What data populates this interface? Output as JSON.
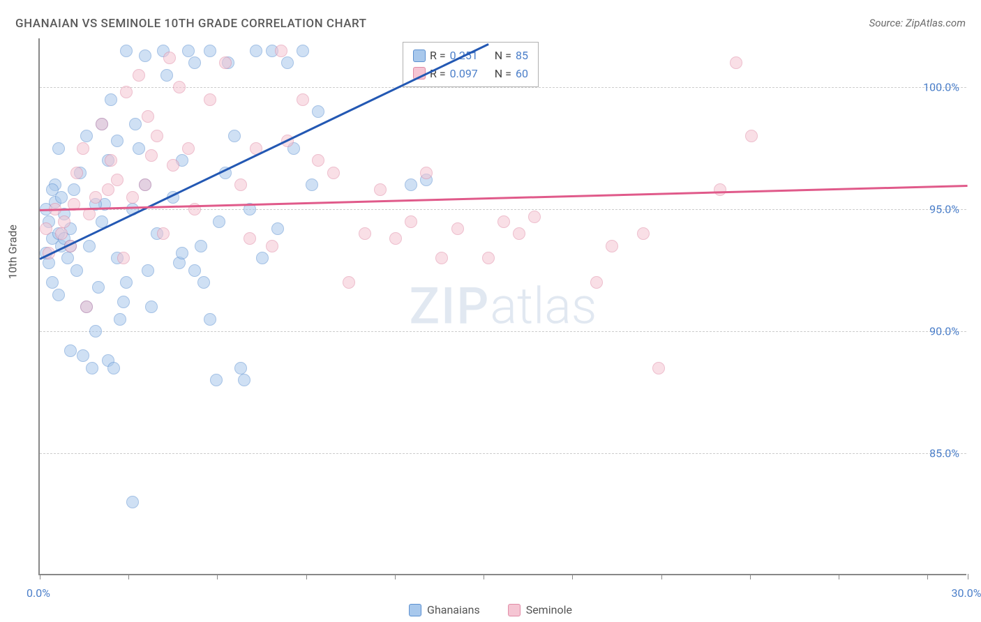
{
  "title": "GHANAIAN VS SEMINOLE 10TH GRADE CORRELATION CHART",
  "source": "Source: ZipAtlas.com",
  "watermark_zip": "ZIP",
  "watermark_atlas": "atlas",
  "y_axis_label": "10th Grade",
  "colors": {
    "blue_fill": "#a8c8ec",
    "blue_stroke": "#5a8fd0",
    "blue_line": "#2358b3",
    "pink_fill": "#f5c5d3",
    "pink_stroke": "#e08aa5",
    "pink_line": "#e05a8a",
    "text_blue": "#4a7ec9",
    "grid": "#cccccc",
    "axis": "#888888"
  },
  "chart": {
    "type": "scatter",
    "xlim": [
      0,
      30
    ],
    "ylim": [
      80,
      102
    ],
    "x_ticks": [
      0,
      2.87,
      5.74,
      8.61,
      11.48,
      14.35,
      17.22,
      20.09,
      22.96,
      25.83,
      28.7,
      30
    ],
    "x_tick_labels": {
      "0": "0.0%",
      "30": "30.0%"
    },
    "y_gridlines": [
      85,
      90,
      95,
      100
    ],
    "y_tick_labels": {
      "85": "85.0%",
      "90": "90.0%",
      "95": "95.0%",
      "100": "100.0%"
    },
    "series": [
      {
        "name": "Ghanaians",
        "color_fill": "#a8c8ec",
        "color_stroke": "#5a8fd0",
        "r_value": "0.251",
        "n_value": "85",
        "trend": {
          "x1": 0,
          "y1": 93.0,
          "x2": 14.5,
          "y2": 101.8,
          "color": "#2358b3"
        },
        "points": [
          [
            0.2,
            95.0
          ],
          [
            0.3,
            94.5
          ],
          [
            0.4,
            93.8
          ],
          [
            0.5,
            95.3
          ],
          [
            0.6,
            94.0
          ],
          [
            0.7,
            93.5
          ],
          [
            0.8,
            94.8
          ],
          [
            0.5,
            96.0
          ],
          [
            0.4,
            92.0
          ],
          [
            0.6,
            91.5
          ],
          [
            0.7,
            95.5
          ],
          [
            0.9,
            93.0
          ],
          [
            1.0,
            94.2
          ],
          [
            1.1,
            95.8
          ],
          [
            1.2,
            92.5
          ],
          [
            1.4,
            89.0
          ],
          [
            1.5,
            91.0
          ],
          [
            1.6,
            93.5
          ],
          [
            1.7,
            88.5
          ],
          [
            1.8,
            90.0
          ],
          [
            1.9,
            91.8
          ],
          [
            2.0,
            94.5
          ],
          [
            2.1,
            95.2
          ],
          [
            2.2,
            97.0
          ],
          [
            2.3,
            99.5
          ],
          [
            2.5,
            93.0
          ],
          [
            2.6,
            90.5
          ],
          [
            2.7,
            91.2
          ],
          [
            2.8,
            92.0
          ],
          [
            3.0,
            95.0
          ],
          [
            3.1,
            98.5
          ],
          [
            3.2,
            97.5
          ],
          [
            3.4,
            96.0
          ],
          [
            3.5,
            92.5
          ],
          [
            3.6,
            91.0
          ],
          [
            3.8,
            94.0
          ],
          [
            4.0,
            101.5
          ],
          [
            4.1,
            100.5
          ],
          [
            4.3,
            95.5
          ],
          [
            4.5,
            92.8
          ],
          [
            4.6,
            97.0
          ],
          [
            4.8,
            101.5
          ],
          [
            5.0,
            101.0
          ],
          [
            5.2,
            93.5
          ],
          [
            5.3,
            92.0
          ],
          [
            5.5,
            90.5
          ],
          [
            5.7,
            88.0
          ],
          [
            5.8,
            94.5
          ],
          [
            6.0,
            96.5
          ],
          [
            6.1,
            101.0
          ],
          [
            6.3,
            98.0
          ],
          [
            6.5,
            88.5
          ],
          [
            6.6,
            88.0
          ],
          [
            6.8,
            95.0
          ],
          [
            7.0,
            101.5
          ],
          [
            7.2,
            93.0
          ],
          [
            7.5,
            101.5
          ],
          [
            7.7,
            94.2
          ],
          [
            8.0,
            101.0
          ],
          [
            8.2,
            97.5
          ],
          [
            8.5,
            101.5
          ],
          [
            8.8,
            96.0
          ],
          [
            9.0,
            99.0
          ],
          [
            3.0,
            83.0
          ],
          [
            2.2,
            88.8
          ],
          [
            2.4,
            88.5
          ],
          [
            1.0,
            89.2
          ],
          [
            0.3,
            92.8
          ],
          [
            0.2,
            93.2
          ],
          [
            0.8,
            93.8
          ],
          [
            1.3,
            96.5
          ],
          [
            1.5,
            98.0
          ],
          [
            0.6,
            97.5
          ],
          [
            1.8,
            95.2
          ],
          [
            2.8,
            101.5
          ],
          [
            3.4,
            101.3
          ],
          [
            4.6,
            93.2
          ],
          [
            5.0,
            92.5
          ],
          [
            5.5,
            101.5
          ],
          [
            12.0,
            96.0
          ],
          [
            12.5,
            96.2
          ],
          [
            0.4,
            95.8
          ],
          [
            1.0,
            93.5
          ],
          [
            2.0,
            98.5
          ],
          [
            2.5,
            97.8
          ]
        ]
      },
      {
        "name": "Seminole",
        "color_fill": "#f5c5d3",
        "color_stroke": "#e08aa5",
        "r_value": "0.097",
        "n_value": "60",
        "trend": {
          "x1": 0,
          "y1": 95.0,
          "x2": 30,
          "y2": 96.0,
          "color": "#e05a8a"
        },
        "points": [
          [
            0.5,
            95.0
          ],
          [
            0.8,
            94.5
          ],
          [
            1.0,
            93.5
          ],
          [
            1.2,
            96.5
          ],
          [
            1.4,
            97.5
          ],
          [
            1.6,
            94.8
          ],
          [
            1.8,
            95.5
          ],
          [
            2.0,
            98.5
          ],
          [
            2.3,
            97.0
          ],
          [
            2.5,
            96.2
          ],
          [
            2.7,
            93.0
          ],
          [
            3.0,
            95.5
          ],
          [
            3.2,
            100.5
          ],
          [
            3.4,
            96.0
          ],
          [
            3.6,
            97.2
          ],
          [
            3.8,
            98.0
          ],
          [
            4.0,
            94.0
          ],
          [
            4.3,
            96.8
          ],
          [
            4.5,
            100.0
          ],
          [
            4.8,
            97.5
          ],
          [
            5.0,
            95.0
          ],
          [
            5.5,
            99.5
          ],
          [
            6.0,
            101.0
          ],
          [
            6.5,
            96.0
          ],
          [
            7.0,
            97.5
          ],
          [
            7.5,
            93.5
          ],
          [
            7.8,
            101.5
          ],
          [
            8.5,
            99.5
          ],
          [
            9.0,
            97.0
          ],
          [
            9.5,
            96.5
          ],
          [
            10.0,
            92.0
          ],
          [
            10.5,
            94.0
          ],
          [
            11.0,
            95.8
          ],
          [
            11.5,
            93.8
          ],
          [
            12.0,
            94.5
          ],
          [
            12.5,
            96.5
          ],
          [
            13.0,
            93.0
          ],
          [
            13.5,
            94.2
          ],
          [
            14.5,
            93.0
          ],
          [
            15.0,
            94.5
          ],
          [
            15.5,
            94.0
          ],
          [
            16.0,
            94.7
          ],
          [
            18.0,
            92.0
          ],
          [
            18.5,
            93.5
          ],
          [
            19.5,
            94.0
          ],
          [
            20.0,
            88.5
          ],
          [
            22.0,
            95.8
          ],
          [
            22.5,
            101.0
          ],
          [
            23.0,
            98.0
          ],
          [
            1.5,
            91.0
          ],
          [
            2.8,
            99.8
          ],
          [
            3.5,
            98.8
          ],
          [
            4.2,
            101.2
          ],
          [
            0.3,
            93.2
          ],
          [
            0.7,
            94.0
          ],
          [
            1.1,
            95.2
          ],
          [
            6.8,
            93.8
          ],
          [
            8.0,
            97.8
          ],
          [
            2.2,
            95.8
          ],
          [
            0.2,
            94.2
          ]
        ]
      }
    ]
  },
  "legend_stats": {
    "r_label": "R = ",
    "n_label": "N = "
  },
  "bottom_legend": [
    {
      "label": "Ghanaians",
      "fill": "#a8c8ec",
      "stroke": "#5a8fd0"
    },
    {
      "label": "Seminole",
      "fill": "#f5c5d3",
      "stroke": "#e08aa5"
    }
  ]
}
